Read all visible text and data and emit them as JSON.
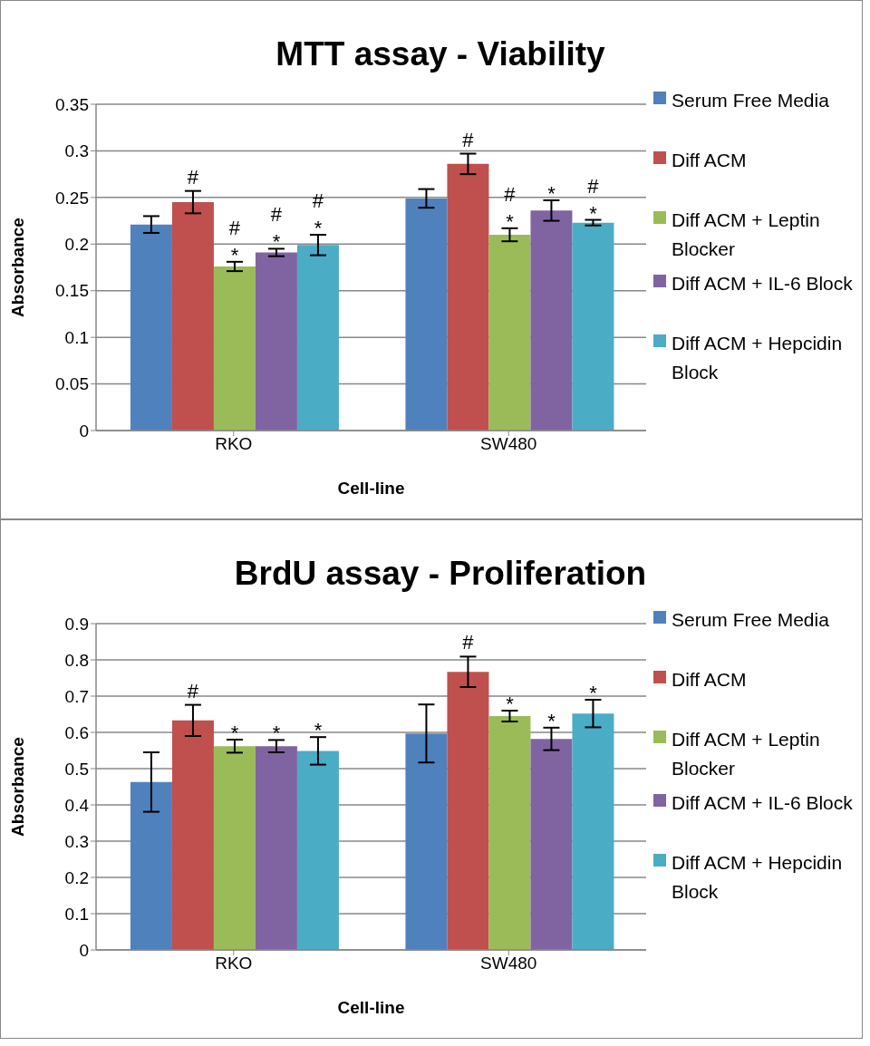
{
  "chart_data": [
    {
      "type": "bar",
      "title": "MTT assay - Viability",
      "xlabel": "Cell-line",
      "ylabel": "Absorbance",
      "categories": [
        "RKO",
        "SW480"
      ],
      "ylim": [
        0,
        0.35
      ],
      "yticks": [
        0,
        0.05,
        0.1,
        0.15,
        0.2,
        0.25,
        0.3,
        0.35
      ],
      "grid": "y",
      "legend": "right",
      "series": [
        {
          "name": "Serum Free Media",
          "color": "#4f81bd",
          "values": [
            0.221,
            0.249
          ],
          "errors": [
            0.009,
            0.01
          ],
          "value_labels": [
            null,
            null
          ]
        },
        {
          "name": "Diff ACM",
          "color": "#c0504d",
          "values": [
            0.245,
            0.286
          ],
          "errors": [
            0.012,
            0.011
          ],
          "value_labels": [
            "#",
            "#"
          ]
        },
        {
          "name": "Diff ACM + Leptin Blocker",
          "color": "#9bbb59",
          "values": [
            0.176,
            0.21
          ],
          "errors": [
            0.005,
            0.007
          ],
          "value_labels": [
            "#\n*",
            "#\n*"
          ]
        },
        {
          "name": "Diff ACM + IL-6 Block",
          "color": "#8064a2",
          "values": [
            0.191,
            0.236
          ],
          "errors": [
            0.004,
            0.011
          ],
          "value_labels": [
            "#\n*",
            "*"
          ]
        },
        {
          "name": "Diff ACM + Hepcidin Block",
          "color": "#4bacc6",
          "values": [
            0.199,
            0.223
          ],
          "errors": [
            0.011,
            0.003
          ],
          "value_labels": [
            "#\n*",
            "#\n*"
          ]
        }
      ]
    },
    {
      "type": "bar",
      "title": "BrdU assay - Proliferation",
      "xlabel": "Cell-line",
      "ylabel": "Absorbance",
      "categories": [
        "RKO",
        "SW480"
      ],
      "ylim": [
        0,
        0.9
      ],
      "yticks": [
        0,
        0.1,
        0.2,
        0.3,
        0.4,
        0.5,
        0.6,
        0.7,
        0.8,
        0.9
      ],
      "grid": "y",
      "legend": "right",
      "series": [
        {
          "name": "Serum Free Media",
          "color": "#4f81bd",
          "values": [
            0.463,
            0.597
          ],
          "errors": [
            0.082,
            0.08
          ],
          "value_labels": [
            null,
            null
          ]
        },
        {
          "name": "Diff ACM",
          "color": "#c0504d",
          "values": [
            0.633,
            0.767
          ],
          "errors": [
            0.043,
            0.042
          ],
          "value_labels": [
            "#",
            "#"
          ]
        },
        {
          "name": "Diff ACM + Leptin Blocker",
          "color": "#9bbb59",
          "values": [
            0.562,
            0.645
          ],
          "errors": [
            0.018,
            0.015
          ],
          "value_labels": [
            "*",
            "*"
          ]
        },
        {
          "name": "Diff ACM + IL-6 Block",
          "color": "#8064a2",
          "values": [
            0.562,
            0.582
          ],
          "errors": [
            0.017,
            0.031
          ],
          "value_labels": [
            "*",
            "*"
          ]
        },
        {
          "name": "Diff ACM + Hepcidin Block",
          "color": "#4bacc6",
          "values": [
            0.549,
            0.652
          ],
          "errors": [
            0.038,
            0.038
          ],
          "value_labels": [
            "*",
            "*"
          ]
        }
      ]
    }
  ]
}
